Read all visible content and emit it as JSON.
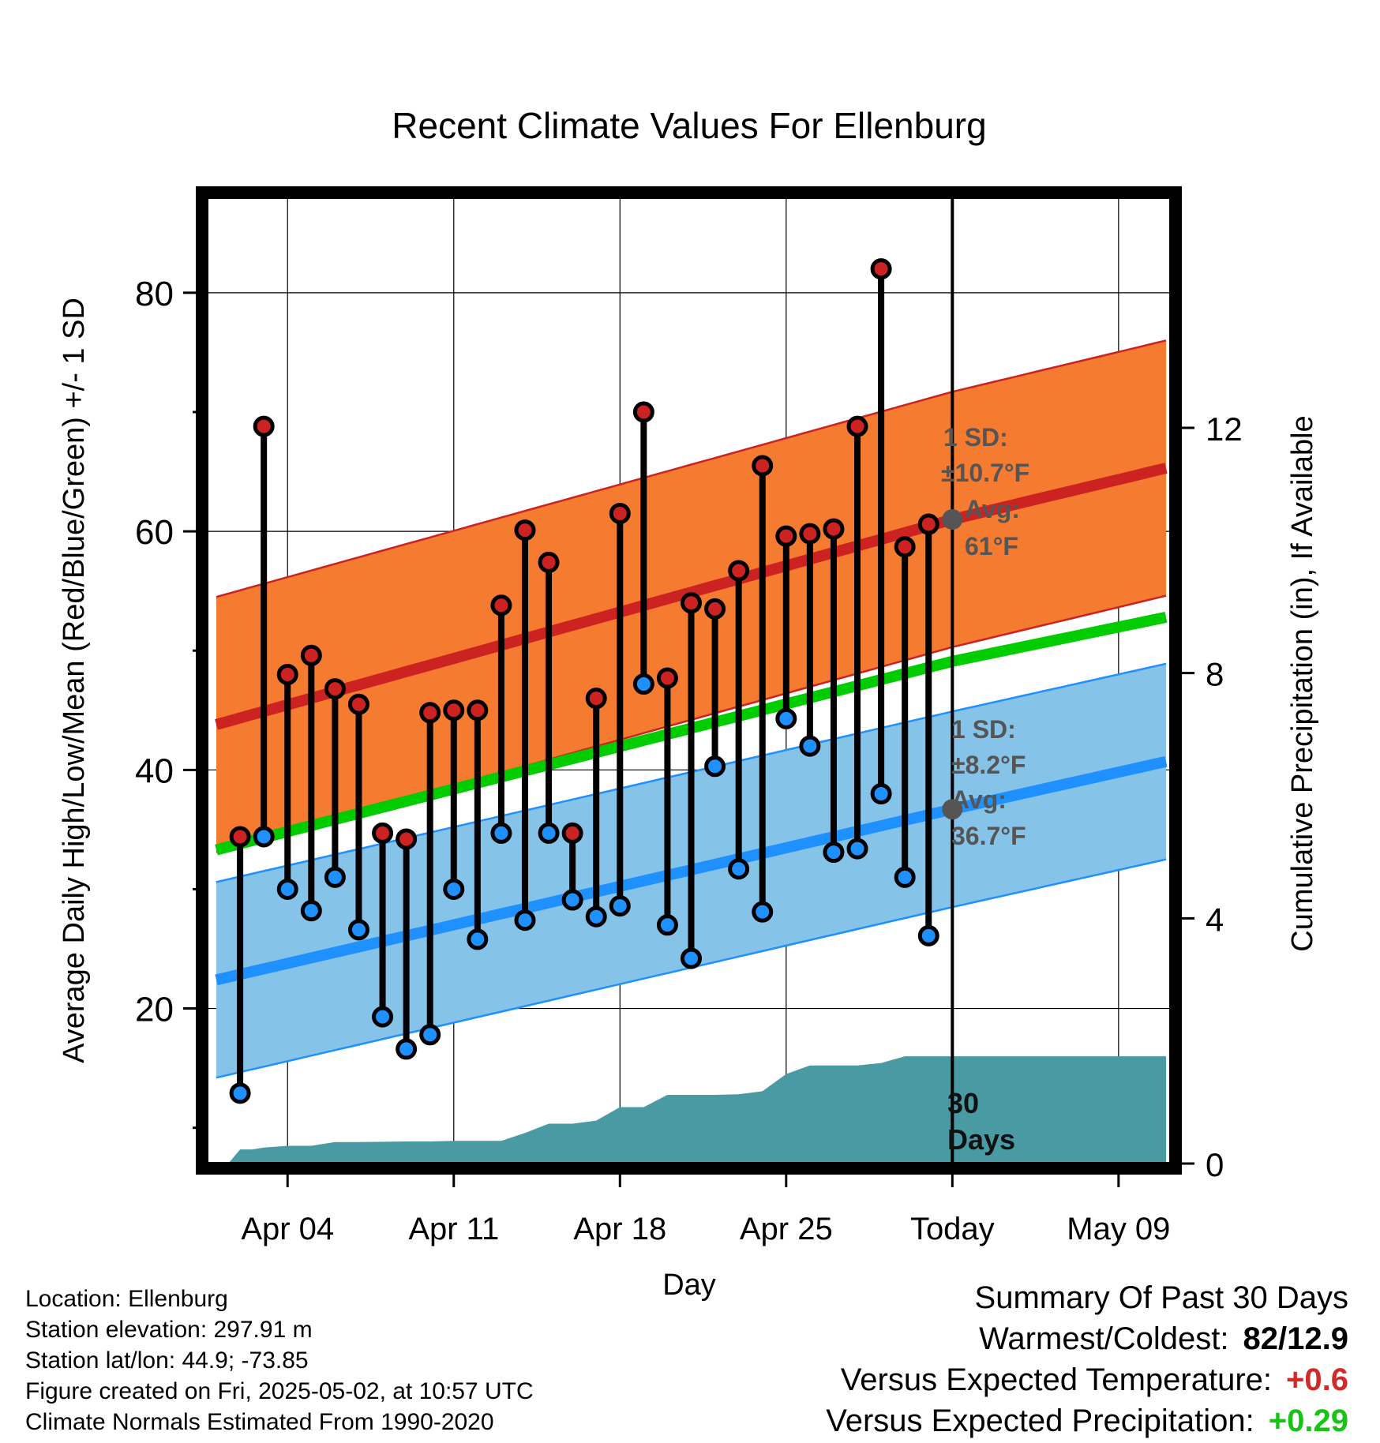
{
  "chart_data": {
    "type": "line",
    "title": "Recent Climate Values For Ellenburg",
    "xlabel": "Day",
    "ylabel": "Average Daily High/Low/Mean (Red/Blue/Green) +/- 1 SD",
    "y2label": "Cumulative Precipitation (in), If Available",
    "x_tick_labels": [
      "Apr 04",
      "Apr 11",
      "Apr 18",
      "Apr 25",
      "Today",
      "May 09"
    ],
    "x_tick_days": [
      4,
      11,
      18,
      25,
      32,
      39
    ],
    "xlim": [
      0.6,
      41.2
    ],
    "ylim": [
      7,
      88
    ],
    "y_ticks": [
      20,
      40,
      60,
      80
    ],
    "y_minor_ticks": [
      10,
      30,
      50,
      70
    ],
    "y2lim": [
      0,
      15.76
    ],
    "y2_ticks": [
      0,
      4,
      8,
      12
    ],
    "grid": true,
    "today_day": 32,
    "today_label": "30\nDays",
    "high_normal": {
      "x": [
        1,
        32,
        41
      ],
      "y": [
        43.8,
        61,
        65.3
      ]
    },
    "high_sd": 10.7,
    "low_normal": {
      "x": [
        1,
        32,
        41
      ],
      "y": [
        22.4,
        36.7,
        40.7
      ]
    },
    "low_sd": 8.2,
    "mean_normal": {
      "x": [
        1,
        32,
        41
      ],
      "y": [
        33.3,
        49.1,
        52.8
      ]
    },
    "high_annotation": {
      "sd_label": "1 SD:",
      "sd_value": "±10.7°F",
      "avg_label": "Avg:",
      "avg_value": "61°F"
    },
    "low_annotation": {
      "sd_label": "1 SD:",
      "sd_value": "±8.2°F",
      "avg_label": "Avg:",
      "avg_value": "36.7°F"
    },
    "days": [
      2,
      3,
      4,
      5,
      6,
      7,
      8,
      9,
      10,
      11,
      12,
      13,
      14,
      15,
      16,
      17,
      18,
      19,
      20,
      21,
      22,
      23,
      24,
      25,
      26,
      27,
      28,
      29,
      30,
      31
    ],
    "highs": [
      34.4,
      68.8,
      48,
      49.6,
      46.8,
      45.5,
      34.7,
      34.2,
      44.8,
      45,
      45,
      53.8,
      60.1,
      57.4,
      34.7,
      46,
      61.5,
      70,
      47.7,
      54,
      53.5,
      56.7,
      65.5,
      59.6,
      59.8,
      60.2,
      68.8,
      82,
      58.7,
      60.6
    ],
    "lows": [
      12.9,
      34.4,
      30,
      28.2,
      31,
      26.6,
      19.3,
      16.6,
      17.8,
      30,
      25.8,
      34.7,
      27.4,
      34.7,
      29.1,
      27.7,
      28.6,
      47.2,
      27,
      24.2,
      40.3,
      31.7,
      28.1,
      44.3,
      42,
      33.1,
      33.4,
      38,
      31,
      26.1
    ],
    "precip_days": [
      1.5,
      2,
      2.5,
      3,
      4,
      5,
      6,
      7,
      9,
      10,
      11,
      12,
      13,
      14,
      15,
      16,
      17,
      18,
      19,
      20,
      21,
      22,
      23,
      24,
      25,
      26,
      27,
      28,
      29,
      30,
      31,
      32,
      35,
      38,
      41
    ],
    "precip": [
      0,
      0.23,
      0.23,
      0.26,
      0.29,
      0.29,
      0.35,
      0.35,
      0.36,
      0.36,
      0.37,
      0.37,
      0.37,
      0.5,
      0.65,
      0.65,
      0.7,
      0.92,
      0.92,
      1.12,
      1.12,
      1.12,
      1.13,
      1.18,
      1.46,
      1.6,
      1.6,
      1.6,
      1.64,
      1.75,
      1.75,
      1.75,
      1.75,
      1.75,
      1.75
    ]
  },
  "info": {
    "location": "Location: Ellenburg",
    "elevation": "Station elevation: 297.91 m",
    "latlon": "Station lat/lon: 44.9; -73.85",
    "created": "Figure created on Fri, 2025-05-02, at 10:57 UTC",
    "normals": "Climate Normals Estimated From 1990-2020"
  },
  "summary": {
    "title": "Summary Of Past 30 Days",
    "warmest_label": "Warmest/Coldest:",
    "warmest_value": "82/12.9",
    "temp_label": "Versus Expected Temperature:",
    "temp_value": "+0.6",
    "precip_label": "Versus Expected Precipitation:",
    "precip_value": "+0.29"
  },
  "colors": {
    "high": "#cc2222",
    "high_band": "#f47b30",
    "low": "#1e90ff",
    "low_band": "#86c3e9",
    "mean": "#00cc00",
    "precip": "#4a9aa4",
    "annotation": "#555555",
    "marker_fill_red": "#cc2222",
    "marker_fill_blue": "#1e90ff"
  }
}
